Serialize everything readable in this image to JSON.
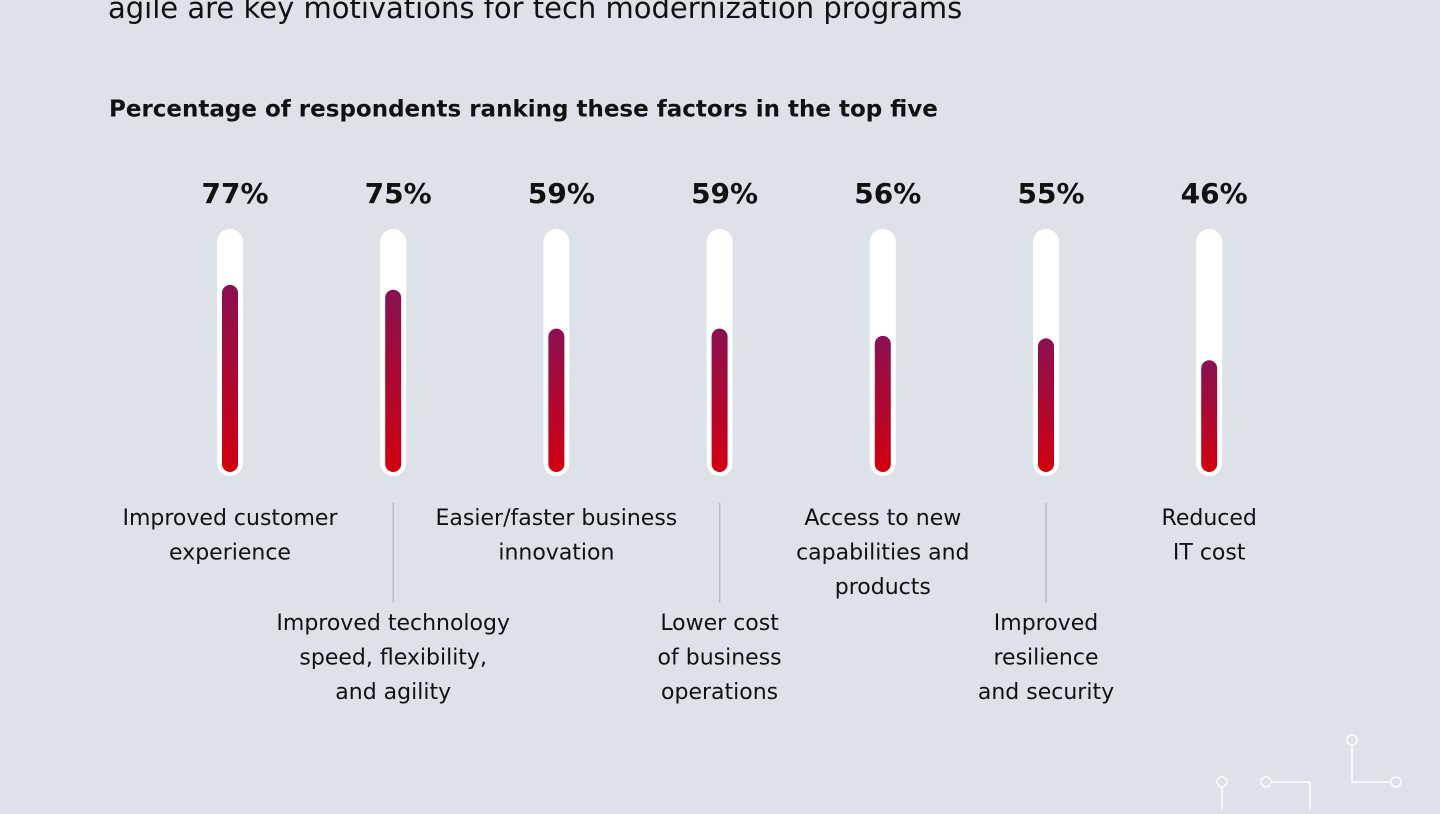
{
  "chart_data": {
    "type": "thermometer",
    "title": "agile are key motivations for tech modernization programs",
    "subtitle": "Percentage of respondents ranking these factors in the top five",
    "categories": [
      [
        "Improved customer",
        "experience"
      ],
      [
        "Improved technology",
        "speed, flexibility,",
        "and agility"
      ],
      [
        "Easier/faster business",
        "innovation"
      ],
      [
        "Lower cost",
        "of business",
        "operations"
      ],
      [
        "Access to new",
        "capabilities and",
        "products"
      ],
      [
        "Improved",
        "resilience",
        "and security"
      ],
      [
        "Reduced",
        "IT cost"
      ]
    ],
    "values": [
      77,
      75,
      59,
      59,
      56,
      55,
      46
    ],
    "value_labels": [
      "77%",
      "75%",
      "59%",
      "59%",
      "56%",
      "55%",
      "46%"
    ],
    "ylim": [
      0,
      100
    ],
    "gradient": [
      "#8a1052",
      "#d20010"
    ]
  }
}
